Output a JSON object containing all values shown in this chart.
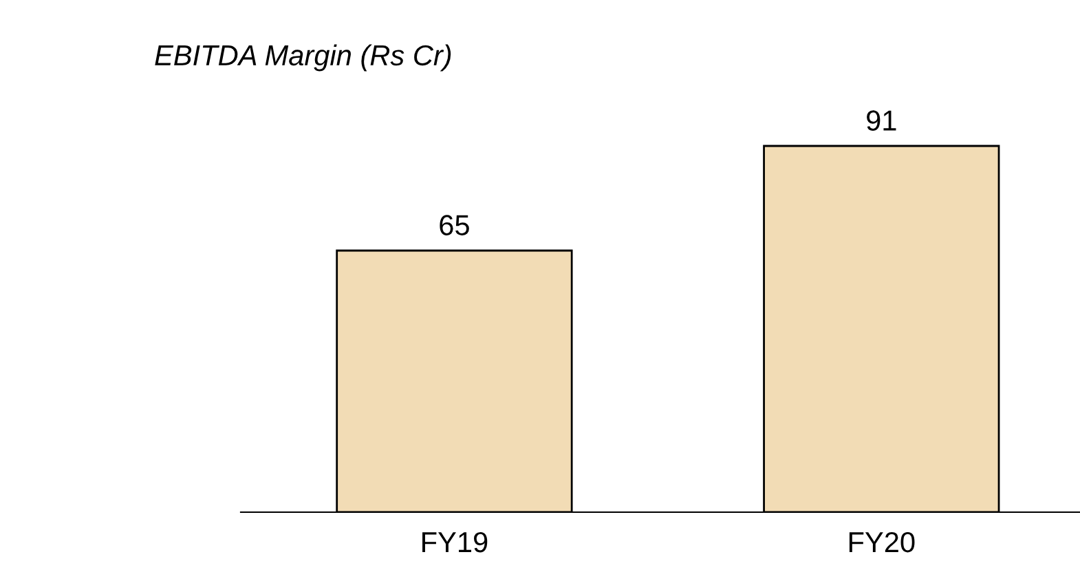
{
  "chart_data": {
    "type": "bar",
    "title": "EBITDA Margin (Rs Cr)",
    "categories": [
      "FY19",
      "FY20"
    ],
    "values": [
      65,
      91
    ],
    "color": "#f2dcb5",
    "data_labels": true
  }
}
